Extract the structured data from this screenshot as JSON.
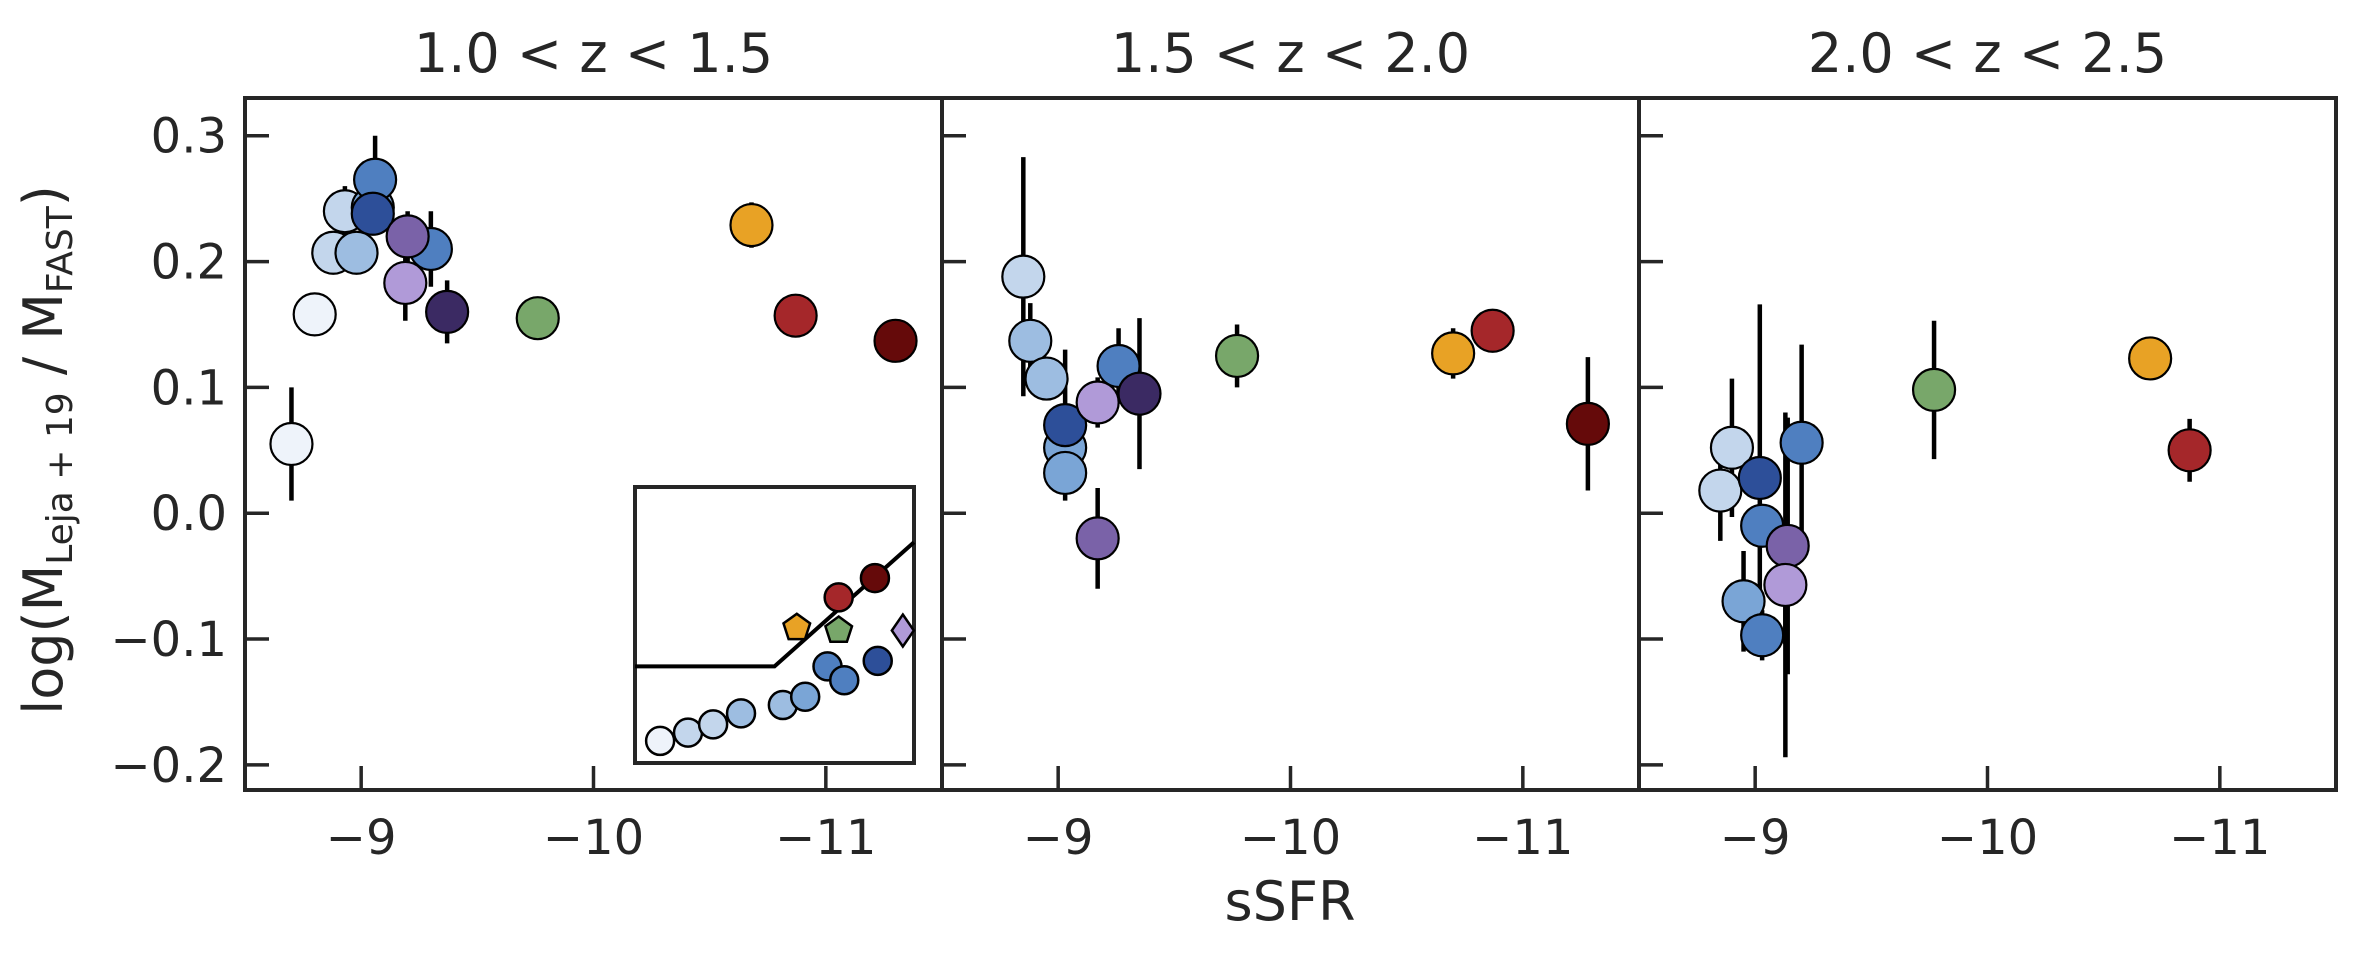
{
  "figure": {
    "xlabel": "sSFR",
    "ylabel": {
      "base": "log(M",
      "sub1": "Leja + 19",
      "mid": " / M",
      "sub2": "FAST",
      "end": ")"
    }
  },
  "palette": {
    "c1": "#eef3fa",
    "c2": "#c3d6ec",
    "c3": "#9dbde1",
    "c4": "#7aa5d6",
    "c5": "#4f7fc0",
    "c6": "#2d4f99",
    "c7": "#b09ad8",
    "c8": "#7a62a8",
    "c9": "#3b2a63",
    "green": "#78a76a",
    "orange": "#e8a225",
    "red": "#a5272a",
    "darkred": "#650a0a"
  },
  "chart_data": [
    {
      "type": "scatter",
      "title": "1.0 < z < 1.5",
      "xlim": [
        -8.5,
        -11.5
      ],
      "ylim": [
        -0.22,
        0.33
      ],
      "xticks": [
        -9,
        -10,
        -11
      ],
      "xticklabels": [
        "−9",
        "−10",
        "−11"
      ],
      "yticks": [
        0.3,
        0.2,
        0.1,
        0.0,
        -0.1,
        -0.2
      ],
      "yticklabels": [
        "0.3",
        "0.2",
        "0.1",
        "0.0",
        "−0.1",
        "−0.2"
      ],
      "show_yticklabels": true,
      "points": [
        {
          "x": -8.7,
          "y": 0.055,
          "err": 0.045,
          "color": "c1"
        },
        {
          "x": -8.8,
          "y": 0.158,
          "err": 0.0,
          "color": "c1"
        },
        {
          "x": -8.88,
          "y": 0.207,
          "err": 0.0,
          "color": "c2"
        },
        {
          "x": -8.93,
          "y": 0.24,
          "err": 0.02,
          "color": "c2"
        },
        {
          "x": -8.98,
          "y": 0.207,
          "err": 0.0,
          "color": "c3"
        },
        {
          "x": -9.05,
          "y": 0.243,
          "err": 0.02,
          "color": "c4"
        },
        {
          "x": -9.06,
          "y": 0.265,
          "err": 0.035,
          "color": "c5"
        },
        {
          "x": -9.05,
          "y": 0.238,
          "err": 0.0,
          "color": "c6"
        },
        {
          "x": -9.3,
          "y": 0.21,
          "err": 0.03,
          "color": "c5"
        },
        {
          "x": -9.2,
          "y": 0.22,
          "err": 0.02,
          "color": "c8"
        },
        {
          "x": -9.19,
          "y": 0.183,
          "err": 0.03,
          "color": "c7"
        },
        {
          "x": -9.37,
          "y": 0.16,
          "err": 0.025,
          "color": "c9"
        },
        {
          "x": -9.76,
          "y": 0.155,
          "err": 0.0,
          "color": "green"
        },
        {
          "x": -10.68,
          "y": 0.229,
          "err": 0.018,
          "color": "orange"
        },
        {
          "x": -10.87,
          "y": 0.157,
          "err": 0.0,
          "color": "red"
        },
        {
          "x": -11.3,
          "y": 0.137,
          "err": 0.0,
          "color": "darkred"
        }
      ],
      "inset": {
        "line": [
          [
            0.0,
            0.35
          ],
          [
            0.5,
            0.35
          ],
          [
            1.0,
            0.8
          ]
        ],
        "markers": [
          {
            "u": 0.09,
            "v": 0.08,
            "shape": "circle",
            "color": "c1"
          },
          {
            "u": 0.19,
            "v": 0.11,
            "shape": "circle",
            "color": "c2"
          },
          {
            "u": 0.28,
            "v": 0.14,
            "shape": "circle",
            "color": "c2"
          },
          {
            "u": 0.38,
            "v": 0.18,
            "shape": "circle",
            "color": "c3"
          },
          {
            "u": 0.53,
            "v": 0.21,
            "shape": "circle",
            "color": "c3"
          },
          {
            "u": 0.61,
            "v": 0.24,
            "shape": "circle",
            "color": "c4"
          },
          {
            "u": 0.69,
            "v": 0.35,
            "shape": "circle",
            "color": "c5"
          },
          {
            "u": 0.75,
            "v": 0.3,
            "shape": "circle",
            "color": "c5"
          },
          {
            "u": 0.87,
            "v": 0.37,
            "shape": "circle",
            "color": "c6"
          },
          {
            "u": 0.58,
            "v": 0.49,
            "shape": "pentagon",
            "color": "orange"
          },
          {
            "u": 0.73,
            "v": 0.48,
            "shape": "pentagon",
            "color": "green"
          },
          {
            "u": 0.73,
            "v": 0.6,
            "shape": "circle",
            "color": "red"
          },
          {
            "u": 0.86,
            "v": 0.67,
            "shape": "circle",
            "color": "darkred"
          },
          {
            "u": 0.96,
            "v": 0.48,
            "shape": "diamond",
            "color": "c7"
          }
        ]
      }
    },
    {
      "type": "scatter",
      "title": "1.5 < z < 2.0",
      "xlim": [
        -8.5,
        -11.5
      ],
      "ylim": [
        -0.22,
        0.33
      ],
      "xticks": [
        -9,
        -10,
        -11
      ],
      "xticklabels": [
        "−9",
        "−10",
        "−11"
      ],
      "yticks": [
        0.3,
        0.2,
        0.1,
        0.0,
        -0.1,
        -0.2
      ],
      "show_yticklabels": false,
      "points": [
        {
          "x": -8.85,
          "y": 0.188,
          "err": 0.095,
          "color": "c2"
        },
        {
          "x": -8.88,
          "y": 0.137,
          "err": 0.03,
          "color": "c3"
        },
        {
          "x": -8.95,
          "y": 0.107,
          "err": 0.0,
          "color": "c3"
        },
        {
          "x": -9.03,
          "y": 0.052,
          "err": 0.0,
          "color": "c4"
        },
        {
          "x": -9.03,
          "y": 0.032,
          "err": 0.0,
          "color": "c4"
        },
        {
          "x": -9.03,
          "y": 0.07,
          "err": 0.06,
          "color": "c6"
        },
        {
          "x": -9.26,
          "y": 0.117,
          "err": 0.03,
          "color": "c5"
        },
        {
          "x": -9.17,
          "y": 0.088,
          "err": 0.02,
          "color": "c7"
        },
        {
          "x": -9.35,
          "y": 0.095,
          "err": 0.06,
          "color": "c9"
        },
        {
          "x": -9.17,
          "y": -0.02,
          "err": 0.04,
          "color": "c8"
        },
        {
          "x": -9.77,
          "y": 0.125,
          "err": 0.025,
          "color": "green"
        },
        {
          "x": -10.7,
          "y": 0.127,
          "err": 0.02,
          "color": "orange"
        },
        {
          "x": -10.87,
          "y": 0.145,
          "err": 0.0,
          "color": "red"
        },
        {
          "x": -11.28,
          "y": 0.071,
          "err": 0.053,
          "color": "darkred"
        }
      ]
    },
    {
      "type": "scatter",
      "title": "2.0 < z < 2.5",
      "xlim": [
        -8.5,
        -11.5
      ],
      "ylim": [
        -0.22,
        0.33
      ],
      "xticks": [
        -9,
        -10,
        -11
      ],
      "xticklabels": [
        "−9",
        "−10",
        "−11"
      ],
      "yticks": [
        0.3,
        0.2,
        0.1,
        0.0,
        -0.1,
        -0.2
      ],
      "show_yticklabels": false,
      "points": [
        {
          "x": -8.85,
          "y": 0.018,
          "err": 0.04,
          "color": "c2"
        },
        {
          "x": -8.9,
          "y": 0.052,
          "err": 0.055,
          "color": "c2"
        },
        {
          "x": -8.95,
          "y": -0.07,
          "err": 0.04,
          "color": "c4"
        },
        {
          "x": -9.03,
          "y": -0.097,
          "err": 0.02,
          "color": "c5"
        },
        {
          "x": -9.03,
          "y": -0.01,
          "err": 0.0,
          "color": "c5"
        },
        {
          "x": -9.02,
          "y": 0.028,
          "err": 0.138,
          "color": "c6"
        },
        {
          "x": -9.2,
          "y": 0.056,
          "err": 0.078,
          "color": "c5"
        },
        {
          "x": -9.14,
          "y": -0.026,
          "err": 0.102,
          "color": "c8"
        },
        {
          "x": -9.13,
          "y": -0.057,
          "err": 0.047,
          "color": "c7"
        },
        {
          "x": -9.13,
          "y": -0.057,
          "err": 0.137,
          "color": "c7",
          "bar_only": true
        },
        {
          "x": -9.77,
          "y": 0.098,
          "err": 0.055,
          "color": "green"
        },
        {
          "x": -10.7,
          "y": 0.123,
          "err": 0.0,
          "color": "orange"
        },
        {
          "x": -10.87,
          "y": 0.05,
          "err": 0.025,
          "color": "red"
        }
      ]
    }
  ]
}
